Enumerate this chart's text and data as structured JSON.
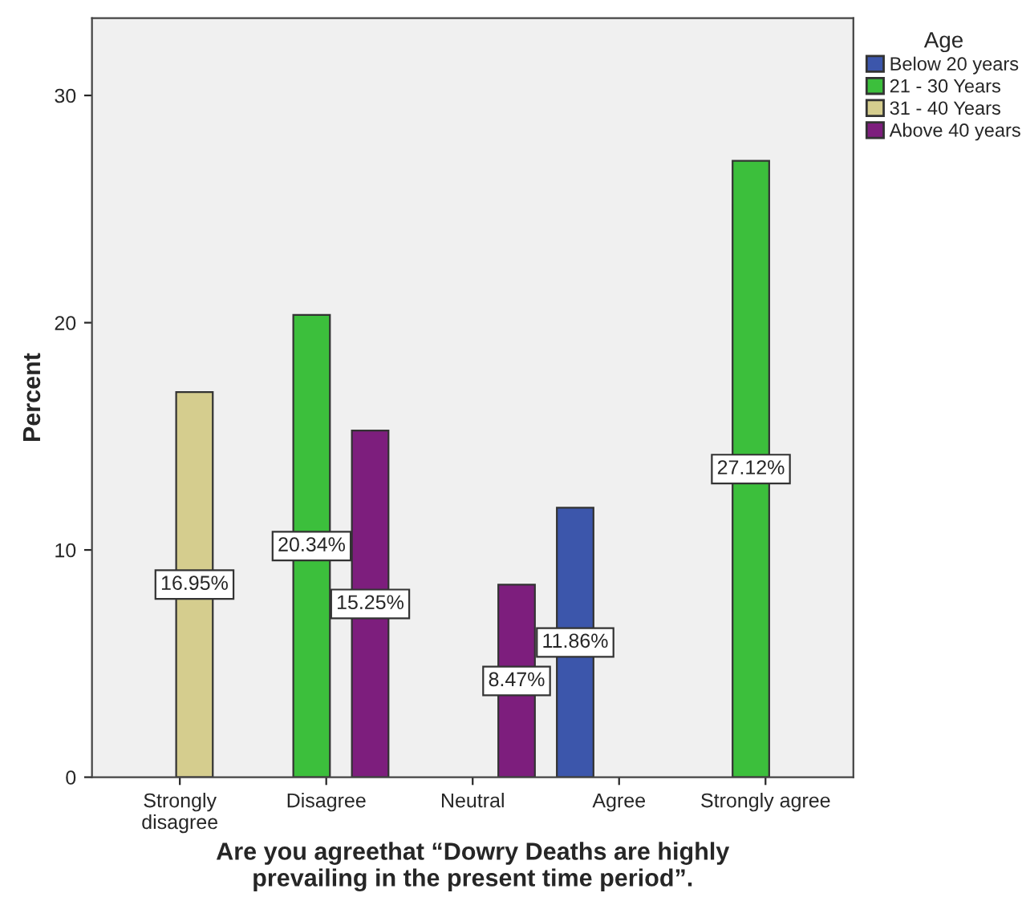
{
  "chart_data": {
    "type": "bar",
    "categories": [
      "Strongly\ndisagree",
      "Disagree",
      "Neutral",
      "Agree",
      "Strongly agree"
    ],
    "xlabel": "Are you agreethat “Dowry Deaths are highly\nprevailing in the present time period”.",
    "ylabel": "Percent",
    "legend_title": "Age",
    "series": [
      {
        "name": "Below 20 years",
        "color": "#3c56ab",
        "values": [
          null,
          null,
          null,
          11.86,
          null
        ],
        "value_labels": [
          null,
          null,
          null,
          "11.86%",
          null
        ]
      },
      {
        "name": "21 - 30 Years",
        "color": "#3cbf3c",
        "values": [
          null,
          20.34,
          null,
          null,
          27.12
        ],
        "value_labels": [
          null,
          "20.34%",
          null,
          null,
          "27.12%"
        ]
      },
      {
        "name": "31 - 40 Years",
        "color": "#d5cd8e",
        "values": [
          16.95,
          null,
          null,
          null,
          null
        ],
        "value_labels": [
          "16.95%",
          null,
          null,
          null,
          null
        ]
      },
      {
        "name": "Above 40 years",
        "color": "#7d1e7d",
        "values": [
          null,
          15.25,
          8.47,
          null,
          null
        ],
        "value_labels": [
          null,
          "15.25%",
          "8.47%",
          null,
          null
        ]
      }
    ],
    "ylim": [
      0,
      33.4
    ],
    "yticks": [
      0,
      10,
      20,
      30
    ],
    "grid": false,
    "legend": "top right"
  }
}
